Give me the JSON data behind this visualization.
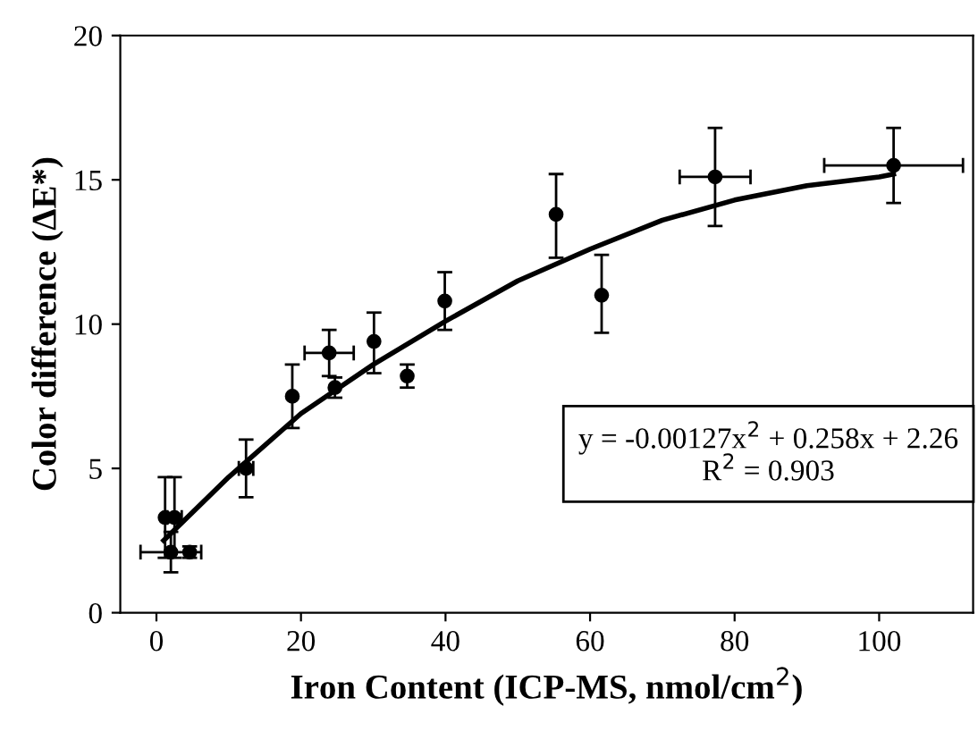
{
  "chart_data": {
    "type": "scatter",
    "xlabel": "Iron Content (ICP-MS, nmol/cm$^{2}$)",
    "ylabel": "Color difference (ΔE*)",
    "xlim": [
      -5,
      113
    ],
    "ylim": [
      0,
      20
    ],
    "xticks": [
      0,
      20,
      40,
      60,
      80,
      100
    ],
    "yticks": [
      0,
      5,
      10,
      15,
      20
    ],
    "grid": false,
    "marker": "circle",
    "annotations": [
      "y = -0.00127x$^{2}$ + 0.258x + 2.26\nR$^{2}$ = 0.903"
    ],
    "series": [
      {
        "color": "#000000",
        "x": [
          1.2,
          2.5,
          2.0,
          4.6,
          12.4,
          18.8,
          23.9,
          24.7,
          30.1,
          34.7,
          39.9,
          55.3,
          61.6,
          77.3,
          102
        ],
        "values": [
          3.3,
          3.3,
          2.1,
          2.1,
          5.0,
          7.5,
          9.0,
          7.8,
          9.4,
          8.2,
          10.8,
          13.8,
          11.0,
          15.1,
          15.5
        ],
        "errors": [
          [
            1.9,
            4.7
          ],
          [
            1.9,
            4.7
          ],
          [
            1.4,
            2.8
          ],
          0.2,
          [
            4.0,
            6.0
          ],
          [
            6.4,
            8.6
          ],
          [
            8.2,
            9.8
          ],
          0.35,
          [
            8.3,
            10.4
          ],
          0.4,
          [
            9.8,
            11.8
          ],
          [
            12.3,
            15.2
          ],
          [
            9.7,
            12.4
          ],
          [
            13.4,
            16.8
          ],
          [
            14.2,
            16.8
          ]
        ],
        "xerrors": [
          null,
          1.0,
          4.2,
          null,
          1.0,
          null,
          3.4,
          null,
          null,
          null,
          null,
          null,
          null,
          4.9,
          9.6
        ]
      },
      {
        "type": "line",
        "color": "#000000",
        "marker": "none",
        "x": [
          1,
          10,
          20,
          30,
          40,
          50,
          60,
          70,
          80,
          90,
          100,
          102
        ],
        "values": [
          2.5,
          4.7,
          6.9,
          8.6,
          10.1,
          11.5,
          12.6,
          13.6,
          14.3,
          14.8,
          15.1,
          15.2
        ]
      }
    ]
  }
}
